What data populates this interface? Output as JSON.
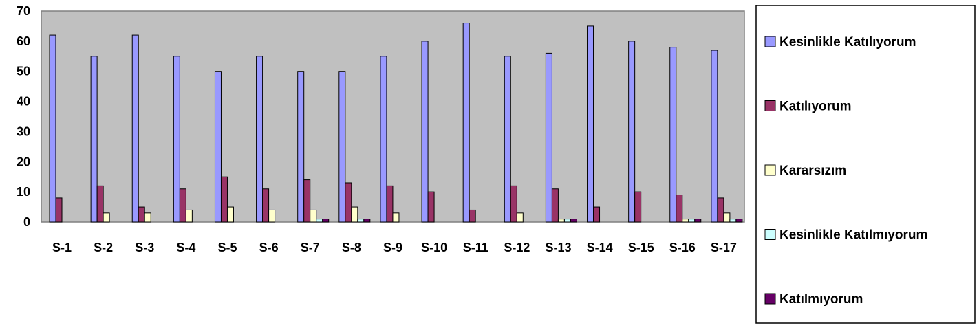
{
  "chart_data": {
    "type": "bar",
    "categories": [
      "S-1",
      "S-2",
      "S-3",
      "S-4",
      "S-5",
      "S-6",
      "S-7",
      "S-8",
      "S-9",
      "S-10",
      "S-11",
      "S-12",
      "S-13",
      "S-14",
      "S-15",
      "S-16",
      "S-17"
    ],
    "series": [
      {
        "name": "Kesinlikle Katılıyorum",
        "color": "#9999ff",
        "values": [
          62,
          55,
          62,
          55,
          50,
          55,
          50,
          50,
          55,
          60,
          66,
          55,
          56,
          65,
          60,
          58,
          57
        ]
      },
      {
        "name": "Katılıyorum",
        "color": "#993366",
        "values": [
          8,
          12,
          5,
          11,
          15,
          11,
          14,
          13,
          12,
          10,
          4,
          12,
          11,
          5,
          10,
          9,
          8
        ]
      },
      {
        "name": "Kararsızım",
        "color": "#ffffcc",
        "values": [
          0,
          3,
          3,
          4,
          5,
          4,
          4,
          5,
          3,
          0,
          0,
          3,
          1,
          0,
          0,
          1,
          3
        ]
      },
      {
        "name": "Kesinlikle Katılmıyorum",
        "color": "#ccffff",
        "values": [
          0,
          0,
          0,
          0,
          0,
          0,
          1,
          1,
          0,
          0,
          0,
          0,
          1,
          0,
          0,
          1,
          1
        ]
      },
      {
        "name": "Katılmıyorum",
        "color": "#660066",
        "values": [
          0,
          0,
          0,
          0,
          0,
          0,
          1,
          1,
          0,
          0,
          0,
          0,
          1,
          0,
          0,
          1,
          1
        ]
      }
    ],
    "yticks": [
      0,
      10,
      20,
      30,
      40,
      50,
      60,
      70
    ],
    "ylim": [
      0,
      70
    ],
    "title": "",
    "xlabel": "",
    "ylabel": "",
    "plot_background": "#c0c0c0",
    "grid": false,
    "legend_position": "right"
  }
}
